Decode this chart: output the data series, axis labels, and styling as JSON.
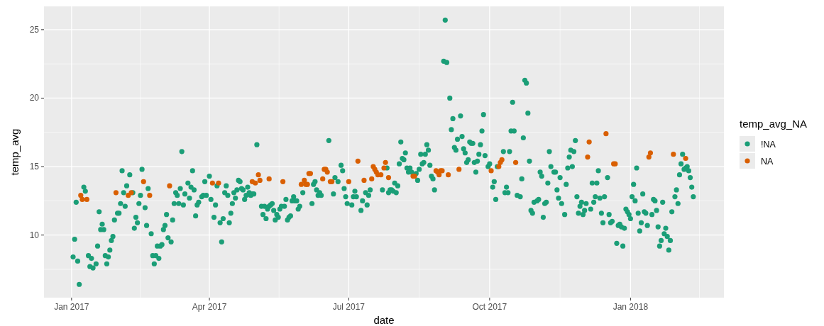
{
  "chart_data": {
    "type": "scatter",
    "xlabel": "date",
    "ylabel": "temp_avg",
    "legend_title": "temp_avg_NA",
    "legend": "right",
    "grid": true,
    "marker": "circle",
    "xlim": [
      "2016-12-14",
      "2018-03-03"
    ],
    "ylim": [
      5.43,
      26.7
    ],
    "xticks": [
      {
        "value": "2017-01-01",
        "label": "Jan 2017"
      },
      {
        "value": "2017-04-01",
        "label": "Apr 2017"
      },
      {
        "value": "2017-07-01",
        "label": "Jul 2017"
      },
      {
        "value": "2017-10-01",
        "label": "Oct 2017"
      },
      {
        "value": "2018-01-01",
        "label": "Jan 2018"
      }
    ],
    "yticks": [
      10,
      15,
      20,
      25
    ],
    "series": [
      {
        "name": "!NA",
        "color": "#1b9e77",
        "x": [
          "2017-01-02",
          "2017-01-03",
          "2017-01-04",
          "2017-01-05",
          "2017-01-06",
          "2017-01-09",
          "2017-01-10",
          "2017-01-12",
          "2017-01-13",
          "2017-01-14",
          "2017-01-15",
          "2017-01-17",
          "2017-01-18",
          "2017-01-19",
          "2017-01-20",
          "2017-01-21",
          "2017-01-22",
          "2017-01-23",
          "2017-01-24",
          "2017-01-25",
          "2017-01-26",
          "2017-01-27",
          "2017-01-28",
          "2017-01-29",
          "2017-01-31",
          "2017-02-01",
          "2017-02-02",
          "2017-02-03",
          "2017-02-04",
          "2017-02-05",
          "2017-02-06",
          "2017-02-08",
          "2017-02-10",
          "2017-02-11",
          "2017-02-12",
          "2017-02-13",
          "2017-02-14",
          "2017-02-15",
          "2017-02-16",
          "2017-02-18",
          "2017-02-19",
          "2017-02-20",
          "2017-02-22",
          "2017-02-23",
          "2017-02-24",
          "2017-02-25",
          "2017-02-26",
          "2017-02-27",
          "2017-02-28",
          "2017-03-01",
          "2017-03-02",
          "2017-03-03",
          "2017-03-04",
          "2017-03-05",
          "2017-03-07",
          "2017-03-08",
          "2017-03-09",
          "2017-03-10",
          "2017-03-11",
          "2017-03-12",
          "2017-03-13",
          "2017-03-14",
          "2017-03-15",
          "2017-03-16",
          "2017-03-18",
          "2017-03-19",
          "2017-03-20",
          "2017-03-21",
          "2017-03-22",
          "2017-03-23",
          "2017-03-24",
          "2017-03-25",
          "2017-03-27",
          "2017-03-28",
          "2017-03-29",
          "2017-03-30",
          "2017-04-01",
          "2017-04-02",
          "2017-04-04",
          "2017-04-05",
          "2017-04-06",
          "2017-04-08",
          "2017-04-09",
          "2017-04-10",
          "2017-04-11",
          "2017-04-12",
          "2017-04-13",
          "2017-04-14",
          "2017-04-15",
          "2017-04-16",
          "2017-04-17",
          "2017-04-18",
          "2017-04-19",
          "2017-04-20",
          "2017-04-21",
          "2017-04-22",
          "2017-04-23",
          "2017-04-24",
          "2017-04-25",
          "2017-04-26",
          "2017-04-27",
          "2017-04-28",
          "2017-04-29",
          "2017-04-30",
          "2017-05-02",
          "2017-05-05",
          "2017-05-06",
          "2017-05-07",
          "2017-05-08",
          "2017-05-09",
          "2017-05-10",
          "2017-05-11",
          "2017-05-12",
          "2017-05-13",
          "2017-05-14",
          "2017-05-15",
          "2017-05-16",
          "2017-05-17",
          "2017-05-18",
          "2017-05-20",
          "2017-05-21",
          "2017-05-22",
          "2017-05-23",
          "2017-05-24",
          "2017-05-25",
          "2017-05-26",
          "2017-05-27",
          "2017-05-28",
          "2017-05-29",
          "2017-05-30",
          "2017-06-01",
          "2017-06-07",
          "2017-06-08",
          "2017-06-09",
          "2017-06-10",
          "2017-06-11",
          "2017-06-12",
          "2017-06-13",
          "2017-06-18",
          "2017-06-21",
          "2017-06-22",
          "2017-06-24",
          "2017-06-26",
          "2017-06-27",
          "2017-06-28",
          "2017-06-29",
          "2017-06-30",
          "2017-07-03",
          "2017-07-04",
          "2017-07-05",
          "2017-07-06",
          "2017-07-09",
          "2017-07-10",
          "2017-07-12",
          "2017-07-13",
          "2017-07-14",
          "2017-07-15",
          "2017-07-23",
          "2017-07-26",
          "2017-07-27",
          "2017-07-28",
          "2017-07-29",
          "2017-07-30",
          "2017-07-31",
          "2017-08-01",
          "2017-08-02",
          "2017-08-03",
          "2017-08-04",
          "2017-08-05",
          "2017-08-06",
          "2017-08-07",
          "2017-08-08",
          "2017-08-09",
          "2017-08-10",
          "2017-08-11",
          "2017-08-14",
          "2017-08-15",
          "2017-08-16",
          "2017-08-17",
          "2017-08-18",
          "2017-08-19",
          "2017-08-20",
          "2017-08-21",
          "2017-08-22",
          "2017-08-23",
          "2017-08-24",
          "2017-08-25",
          "2017-08-26",
          "2017-09-01",
          "2017-09-02",
          "2017-09-03",
          "2017-09-05",
          "2017-09-06",
          "2017-09-07",
          "2017-09-08",
          "2017-09-09",
          "2017-09-10",
          "2017-09-12",
          "2017-09-13",
          "2017-09-14",
          "2017-09-15",
          "2017-09-16",
          "2017-09-17",
          "2017-09-18",
          "2017-09-19",
          "2017-09-20",
          "2017-09-21",
          "2017-09-22",
          "2017-09-23",
          "2017-09-24",
          "2017-09-25",
          "2017-09-26",
          "2017-09-27",
          "2017-09-28",
          "2017-09-30",
          "2017-10-01",
          "2017-10-03",
          "2017-10-04",
          "2017-10-05",
          "2017-10-06",
          "2017-10-10",
          "2017-10-11",
          "2017-10-12",
          "2017-10-13",
          "2017-10-14",
          "2017-10-15",
          "2017-10-16",
          "2017-10-17",
          "2017-10-19",
          "2017-10-21",
          "2017-10-22",
          "2017-10-23",
          "2017-10-24",
          "2017-10-25",
          "2017-10-26",
          "2017-10-27",
          "2017-10-28",
          "2017-10-29",
          "2017-10-30",
          "2017-11-01",
          "2017-11-02",
          "2017-11-03",
          "2017-11-04",
          "2017-11-05",
          "2017-11-06",
          "2017-11-07",
          "2017-11-08",
          "2017-11-09",
          "2017-11-10",
          "2017-11-12",
          "2017-11-13",
          "2017-11-14",
          "2017-11-15",
          "2017-11-16",
          "2017-11-17",
          "2017-11-19",
          "2017-11-20",
          "2017-11-21",
          "2017-11-22",
          "2017-11-23",
          "2017-11-24",
          "2017-11-25",
          "2017-11-26",
          "2017-11-27",
          "2017-11-28",
          "2017-11-29",
          "2017-11-30",
          "2017-12-01",
          "2017-12-02",
          "2017-12-03",
          "2017-12-06",
          "2017-12-07",
          "2017-12-08",
          "2017-12-09",
          "2017-12-10",
          "2017-12-11",
          "2017-12-12",
          "2017-12-13",
          "2017-12-14",
          "2017-12-15",
          "2017-12-17",
          "2017-12-18",
          "2017-12-19",
          "2017-12-20",
          "2017-12-23",
          "2017-12-24",
          "2017-12-25",
          "2017-12-26",
          "2017-12-27",
          "2017-12-28",
          "2017-12-29",
          "2017-12-30",
          "2017-12-31",
          "2018-01-01",
          "2018-01-02",
          "2018-01-03",
          "2018-01-04",
          "2018-01-05",
          "2018-01-06",
          "2018-01-07",
          "2018-01-08",
          "2018-01-09",
          "2018-01-10",
          "2018-01-11",
          "2018-01-12",
          "2018-01-15",
          "2018-01-16",
          "2018-01-17",
          "2018-01-18",
          "2018-01-19",
          "2018-01-20",
          "2018-01-21",
          "2018-01-22",
          "2018-01-23",
          "2018-01-24",
          "2018-01-25",
          "2018-01-26",
          "2018-01-27",
          "2018-01-28",
          "2018-01-30",
          "2018-01-31",
          "2018-02-01",
          "2018-02-02",
          "2018-02-03",
          "2018-02-04",
          "2018-02-05",
          "2018-02-06",
          "2018-02-07",
          "2018-02-08",
          "2018-02-09",
          "2018-02-10",
          "2018-02-11"
        ],
        "values": [
          8.4,
          9.7,
          12.4,
          8.1,
          6.4,
          13.5,
          13.2,
          8.5,
          7.7,
          8.3,
          7.6,
          7.9,
          9.2,
          11.7,
          10.4,
          10.8,
          10.4,
          8.5,
          7.9,
          8.4,
          8.9,
          9.6,
          9.9,
          11.1,
          11.6,
          11.6,
          12.3,
          14.7,
          13.1,
          12.1,
          13.6,
          14.4,
          13.1,
          10.5,
          11.3,
          10.9,
          12.3,
          12.9,
          14.8,
          12.0,
          10.7,
          13.4,
          10.1,
          8.5,
          7.9,
          8.5,
          9.2,
          8.3,
          9.2,
          9.3,
          10.4,
          10.7,
          11.5,
          9.8,
          9.5,
          11.1,
          12.3,
          13.1,
          12.9,
          12.3,
          13.4,
          16.1,
          12.2,
          13.0,
          13.8,
          12.7,
          13.5,
          14.7,
          13.3,
          11.4,
          12.2,
          12.4,
          12.8,
          12.9,
          13.9,
          12.9,
          14.3,
          12.6,
          11.3,
          12.2,
          13.6,
          10.9,
          9.5,
          11.2,
          13.1,
          13.6,
          12.9,
          10.9,
          11.6,
          12.3,
          13.1,
          12.7,
          13.3,
          14.0,
          13.9,
          13.4,
          13.3,
          12.6,
          12.9,
          13.5,
          13.1,
          12.9,
          13.0,
          13.0,
          16.6,
          12.1,
          11.5,
          12.1,
          11.2,
          11.9,
          12.1,
          12.2,
          12.3,
          11.8,
          11.1,
          11.5,
          11.3,
          11.9,
          12.1,
          12.1,
          12.6,
          11.1,
          11.3,
          11.4,
          12.5,
          12.8,
          12.5,
          12.5,
          11.9,
          12.1,
          13.1,
          12.3,
          13.7,
          13.9,
          13.3,
          12.9,
          13.1,
          12.9,
          16.9,
          13.0,
          14.2,
          13.9,
          15.1,
          14.7,
          13.4,
          12.8,
          12.3,
          12.2,
          12.8,
          13.2,
          12.8,
          11.8,
          12.5,
          13.1,
          12.2,
          12.9,
          13.3,
          13.3,
          14.9,
          13.1,
          13.3,
          13.3,
          13.2,
          13.8,
          13.1,
          13.6,
          15.2,
          16.8,
          15.6,
          15.5,
          16.0,
          14.9,
          14.6,
          14.9,
          14.6,
          14.5,
          14.0,
          14.8,
          15.9,
          15.2,
          15.3,
          15.9,
          16.6,
          16.2,
          15.1,
          14.3,
          14.1,
          13.3,
          22.7,
          25.7,
          22.6,
          20.0,
          17.7,
          18.5,
          16.4,
          16.2,
          17.0,
          18.7,
          17.2,
          16.3,
          16.0,
          15.3,
          15.5,
          16.8,
          16.7,
          16.7,
          15.3,
          14.6,
          15.4,
          15.9,
          16.6,
          17.6,
          18.8,
          15.8,
          15.0,
          15.2,
          13.5,
          13.9,
          12.6,
          15.0,
          16.1,
          13.1,
          13.5,
          13.1,
          16.1,
          17.6,
          19.7,
          17.6,
          12.9,
          12.8,
          14.1,
          17.1,
          21.3,
          21.1,
          18.9,
          15.4,
          11.8,
          11.6,
          12.4,
          12.5,
          12.6,
          14.6,
          14.3,
          11.3,
          12.3,
          12.4,
          13.8,
          16.1,
          15.0,
          14.6,
          14.6,
          13.3,
          12.7,
          14.2,
          12.3,
          11.5,
          13.7,
          14.9,
          15.7,
          16.2,
          15.0,
          16.1,
          16.9,
          12.8,
          11.6,
          12.1,
          12.4,
          11.5,
          11.8,
          12.3,
          11.9,
          13.8,
          12.4,
          12.8,
          13.8,
          14.7,
          12.7,
          11.6,
          10.9,
          12.8,
          14.2,
          11.5,
          10.9,
          11.0,
          9.4,
          10.7,
          10.8,
          10.6,
          9.2,
          10.5,
          11.9,
          11.7,
          11.5,
          11.2,
          12.8,
          13.7,
          12.5,
          14.9,
          11.6,
          10.3,
          10.9,
          13.0,
          11.7,
          11.6,
          10.7,
          11.5,
          12.6,
          12.5,
          11.8,
          10.6,
          9.2,
          9.6,
          12.4,
          10.1,
          10.5,
          9.9,
          8.9,
          9.6,
          11.7,
          12.8,
          13.3,
          12.3,
          14.4,
          15.2,
          15.9,
          14.8,
          14.9,
          15.0,
          14.7,
          14.2,
          13.5,
          12.8
        ]
      },
      {
        "name": "NA",
        "color": "#d95f02",
        "x": [
          "2017-01-07",
          "2017-01-08",
          "2017-01-11",
          "2017-01-30",
          "2017-02-07",
          "2017-02-09",
          "2017-02-17",
          "2017-02-21",
          "2017-03-06",
          "2017-04-03",
          "2017-04-07",
          "2017-04-29",
          "2017-05-01",
          "2017-05-03",
          "2017-05-04",
          "2017-05-10",
          "2017-05-19",
          "2017-05-31",
          "2017-06-02",
          "2017-06-03",
          "2017-06-04",
          "2017-06-05",
          "2017-06-06",
          "2017-06-14",
          "2017-06-15",
          "2017-06-16",
          "2017-06-17",
          "2017-06-19",
          "2017-06-20",
          "2017-07-01",
          "2017-07-07",
          "2017-07-11",
          "2017-07-16",
          "2017-07-17",
          "2017-07-18",
          "2017-07-19",
          "2017-07-20",
          "2017-07-22",
          "2017-07-24",
          "2017-07-25",
          "2017-07-27",
          "2017-08-12",
          "2017-08-13",
          "2017-08-27",
          "2017-08-28",
          "2017-08-29",
          "2017-08-30",
          "2017-08-31",
          "2017-09-04",
          "2017-09-11",
          "2017-10-02",
          "2017-10-07",
          "2017-10-08",
          "2017-10-09",
          "2017-10-18",
          "2017-12-04",
          "2017-12-05",
          "2017-12-16",
          "2017-12-21",
          "2017-12-22",
          "2018-01-13",
          "2018-01-14",
          "2018-01-29",
          "2018-02-06"
        ],
        "values": [
          12.9,
          12.6,
          12.6,
          13.1,
          12.9,
          13.1,
          13.9,
          12.9,
          13.6,
          13.8,
          13.8,
          13.9,
          13.8,
          14.4,
          14.0,
          14.1,
          13.9,
          13.7,
          14.0,
          13.7,
          13.7,
          14.5,
          14.5,
          14.1,
          14.8,
          14.8,
          14.6,
          13.9,
          13.9,
          13.9,
          15.4,
          14.0,
          14.1,
          15.0,
          14.8,
          14.6,
          14.4,
          14.4,
          14.9,
          15.3,
          14.2,
          14.3,
          14.3,
          14.7,
          14.6,
          14.4,
          14.7,
          14.7,
          14.4,
          14.8,
          14.7,
          15.0,
          15.3,
          15.5,
          15.3,
          15.7,
          16.8,
          17.4,
          15.2,
          15.2,
          15.7,
          16.0,
          15.9,
          15.6
        ]
      }
    ]
  }
}
